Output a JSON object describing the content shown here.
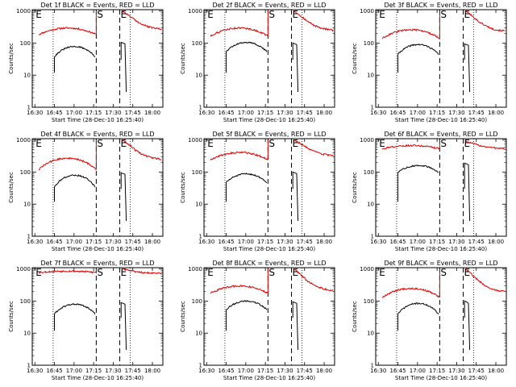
{
  "chart_data": {
    "type": "line",
    "panel_shared": {
      "start_label": "Start Time (28-Dec-10 16:25:40)",
      "ylabel": "Counts/sec",
      "xticks": [
        "16:30",
        "16:45",
        "17:00",
        "17:15",
        "17:30",
        "17:45",
        "18:00"
      ],
      "yticks": [
        "1",
        "10",
        "100",
        "1000"
      ],
      "yscale": "log",
      "ylim": [
        1,
        1100
      ],
      "xlim_minutes": [
        -2,
        98
      ],
      "markers": {
        "E1": "E",
        "S": "S",
        "E2": "E"
      },
      "marker_times_minutes": [
        0,
        47,
        65
      ],
      "dotted_lines_minutes": [
        14,
        73
      ]
    },
    "panels": [
      {
        "title": "Det 1f BLACK = Events, RED = LLD",
        "dashed_minutes": [
          47,
          65
        ],
        "red": {
          "base": 185,
          "arc": 110,
          "arc_start": 3,
          "arc_end": 47,
          "post": [
            1000,
            720,
            500,
            380,
            320,
            290,
            270
          ]
        },
        "black": {
          "base": 38,
          "arc": 40,
          "arc_start": 15,
          "arc_end": 46,
          "post": [
            105,
            100,
            95
          ]
        },
        "colors": {
          "black": "#000000",
          "red": "#e00000"
        }
      },
      {
        "title": "Det 2f BLACK = Events, RED = LLD",
        "dashed_minutes": [
          47,
          65
        ],
        "red": {
          "base": 165,
          "arc": 130,
          "arc_start": 3,
          "arc_end": 47,
          "post": [
            1000,
            700,
            480,
            360,
            300,
            270,
            250
          ]
        },
        "black": {
          "base": 55,
          "arc": 50,
          "arc_start": 15,
          "arc_end": 46,
          "post": [
            100,
            95,
            90
          ]
        },
        "colors": {
          "black": "#000000",
          "red": "#e00000"
        }
      },
      {
        "title": "Det 3f BLACK = Events, RED = LLD",
        "dashed_minutes": [
          47,
          65
        ],
        "red": {
          "base": 140,
          "arc": 120,
          "arc_start": 3,
          "arc_end": 47,
          "post": [
            1000,
            680,
            460,
            350,
            280,
            250,
            240
          ]
        },
        "black": {
          "base": 45,
          "arc": 45,
          "arc_start": 15,
          "arc_end": 46,
          "post": [
            95,
            90,
            85
          ]
        },
        "colors": {
          "black": "#000000",
          "red": "#e00000"
        }
      },
      {
        "title": "Det 4f BLACK = Events, RED = LLD",
        "dashed_minutes": [
          47,
          65
        ],
        "red": {
          "base": 120,
          "arc": 150,
          "arc_start": 3,
          "arc_end": 47,
          "post": [
            1000,
            720,
            480,
            360,
            300,
            270,
            250
          ]
        },
        "black": {
          "base": 35,
          "arc": 45,
          "arc_start": 15,
          "arc_end": 46,
          "post": [
            95,
            90,
            85
          ]
        },
        "colors": {
          "black": "#000000",
          "red": "#e00000"
        }
      },
      {
        "title": "Det 5f BLACK = Events, RED = LLD",
        "dashed_minutes": [
          47,
          65
        ],
        "red": {
          "base": 240,
          "arc": 170,
          "arc_start": 3,
          "arc_end": 47,
          "post": [
            1000,
            760,
            560,
            440,
            380,
            340,
            320
          ]
        },
        "black": {
          "base": 48,
          "arc": 40,
          "arc_start": 15,
          "arc_end": 46,
          "post": [
            100,
            95,
            90
          ]
        },
        "colors": {
          "black": "#000000",
          "red": "#e00000"
        }
      },
      {
        "title": "Det 6f BLACK = Events, RED = LLD",
        "dashed_minutes": [
          47,
          65
        ],
        "red": {
          "base": 540,
          "arc": 130,
          "arc_start": 3,
          "arc_end": 47,
          "post": [
            900,
            780,
            680,
            620,
            580,
            560,
            540
          ]
        },
        "black": {
          "base": 100,
          "arc": 60,
          "arc_start": 15,
          "arc_end": 46,
          "post": [
            190,
            180,
            170
          ]
        },
        "colors": {
          "black": "#000000",
          "red": "#e00000"
        }
      },
      {
        "title": "Det 7f BLACK = Events, RED = LLD",
        "dashed_minutes": [
          47,
          65
        ],
        "red": {
          "base": 780,
          "arc": 80,
          "arc_start": 3,
          "arc_end": 47,
          "post": [
            1000,
            900,
            820,
            780,
            760,
            750,
            740
          ]
        },
        "black": {
          "base": 40,
          "arc": 40,
          "arc_start": 15,
          "arc_end": 46,
          "post": [
            90,
            85,
            80
          ]
        },
        "colors": {
          "black": "#000000",
          "red": "#e00000"
        }
      },
      {
        "title": "Det 8f BLACK = Events, RED = LLD",
        "dashed_minutes": [
          47,
          65
        ],
        "red": {
          "base": 175,
          "arc": 120,
          "arc_start": 3,
          "arc_end": 47,
          "post": [
            1000,
            660,
            420,
            320,
            260,
            230,
            210
          ]
        },
        "black": {
          "base": 55,
          "arc": 45,
          "arc_start": 15,
          "arc_end": 46,
          "post": [
            95,
            90,
            85
          ]
        },
        "colors": {
          "black": "#000000",
          "red": "#e00000"
        }
      },
      {
        "title": "Det 9f BLACK = Events, RED = LLD",
        "dashed_minutes": [
          47,
          65
        ],
        "red": {
          "base": 130,
          "arc": 120,
          "arc_start": 3,
          "arc_end": 47,
          "post": [
            1000,
            640,
            420,
            300,
            240,
            210,
            200
          ]
        },
        "black": {
          "base": 40,
          "arc": 45,
          "arc_start": 15,
          "arc_end": 46,
          "post": [
            100,
            95,
            85
          ]
        },
        "colors": {
          "black": "#000000",
          "red": "#e00000"
        }
      }
    ]
  }
}
